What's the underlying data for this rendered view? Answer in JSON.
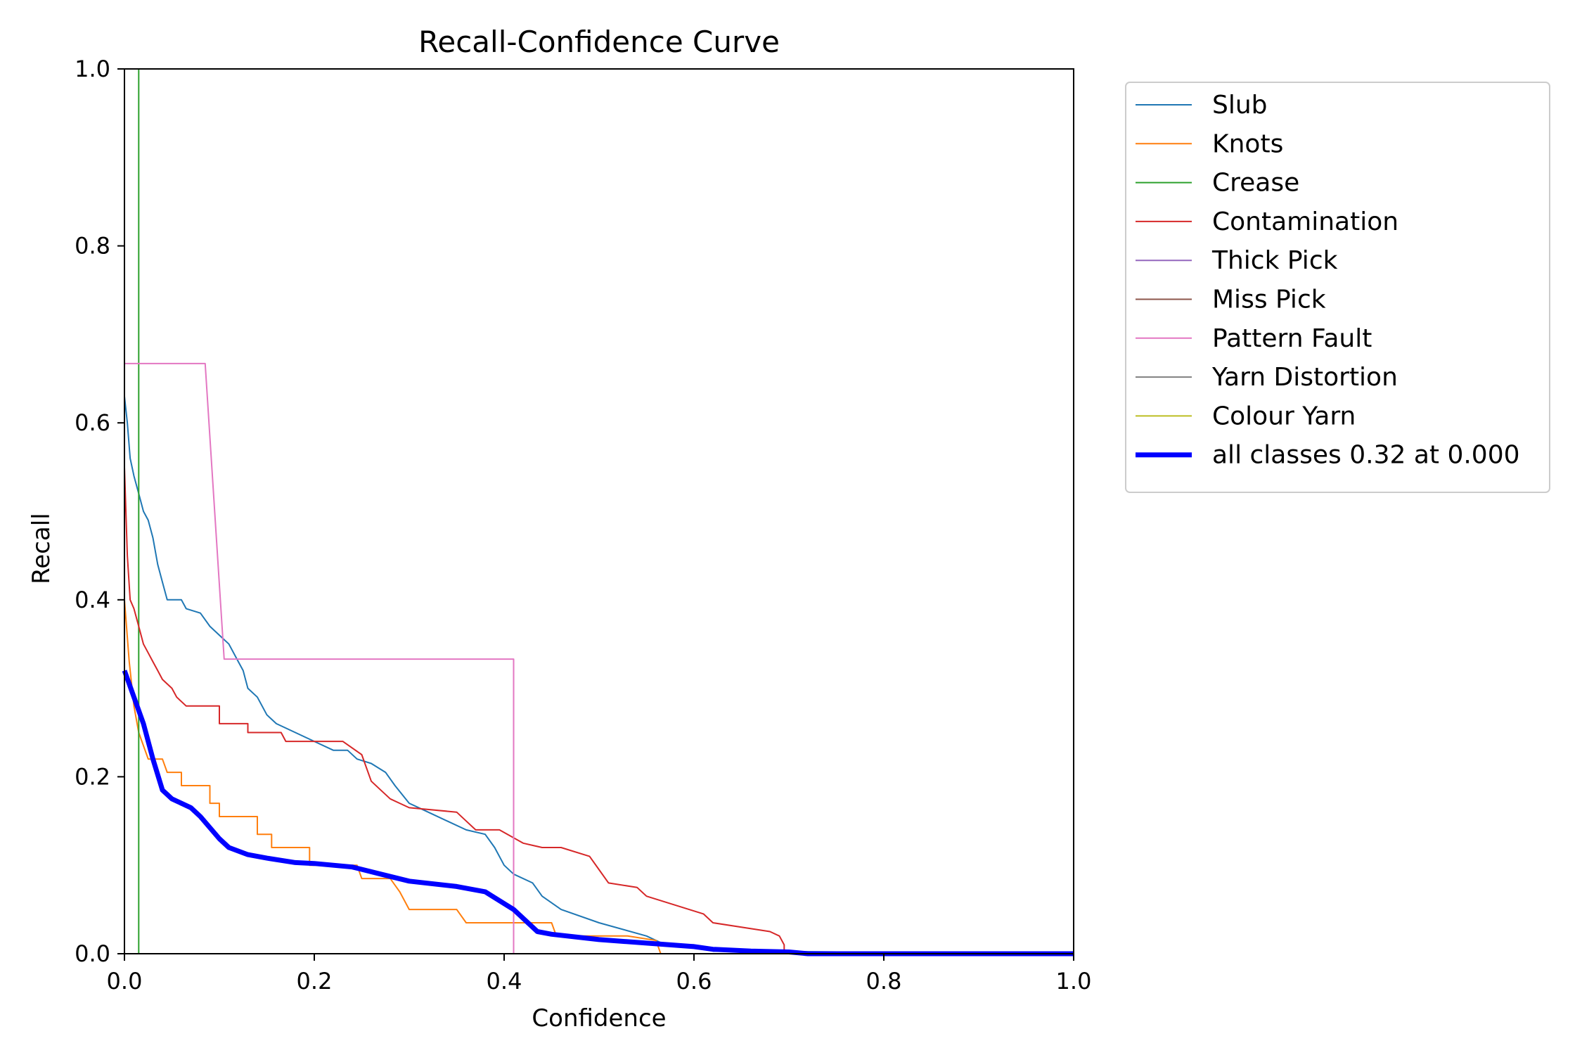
{
  "chart_data": {
    "type": "line",
    "title": "Recall-Confidence Curve",
    "xlabel": "Confidence",
    "ylabel": "Recall",
    "xlim": [
      0,
      1
    ],
    "ylim": [
      0,
      1
    ],
    "xticks": [
      "0.0",
      "0.2",
      "0.4",
      "0.6",
      "0.8",
      "1.0"
    ],
    "yticks": [
      "0.0",
      "0.2",
      "0.4",
      "0.6",
      "0.8",
      "1.0"
    ],
    "grid": false,
    "legend_position": "outside-right-top",
    "series": [
      {
        "name": "Slub",
        "color": "#1f77b4",
        "width": 2,
        "points": [
          [
            0,
            0.63
          ],
          [
            0.003,
            0.6
          ],
          [
            0.006,
            0.56
          ],
          [
            0.01,
            0.54
          ],
          [
            0.015,
            0.52
          ],
          [
            0.02,
            0.5
          ],
          [
            0.025,
            0.49
          ],
          [
            0.03,
            0.47
          ],
          [
            0.035,
            0.44
          ],
          [
            0.04,
            0.42
          ],
          [
            0.045,
            0.4
          ],
          [
            0.06,
            0.4
          ],
          [
            0.065,
            0.39
          ],
          [
            0.08,
            0.385
          ],
          [
            0.09,
            0.37
          ],
          [
            0.1,
            0.36
          ],
          [
            0.11,
            0.35
          ],
          [
            0.12,
            0.33
          ],
          [
            0.125,
            0.32
          ],
          [
            0.13,
            0.3
          ],
          [
            0.14,
            0.29
          ],
          [
            0.15,
            0.27
          ],
          [
            0.16,
            0.26
          ],
          [
            0.18,
            0.25
          ],
          [
            0.2,
            0.24
          ],
          [
            0.22,
            0.23
          ],
          [
            0.235,
            0.23
          ],
          [
            0.245,
            0.22
          ],
          [
            0.26,
            0.215
          ],
          [
            0.275,
            0.205
          ],
          [
            0.285,
            0.19
          ],
          [
            0.3,
            0.17
          ],
          [
            0.32,
            0.16
          ],
          [
            0.34,
            0.15
          ],
          [
            0.36,
            0.14
          ],
          [
            0.38,
            0.135
          ],
          [
            0.39,
            0.12
          ],
          [
            0.4,
            0.1
          ],
          [
            0.41,
            0.09
          ],
          [
            0.43,
            0.08
          ],
          [
            0.44,
            0.065
          ],
          [
            0.46,
            0.05
          ],
          [
            0.5,
            0.035
          ],
          [
            0.55,
            0.02
          ],
          [
            0.57,
            0.01
          ],
          [
            0.6,
            0.01
          ],
          [
            0.62,
            0.003
          ],
          [
            1,
            0
          ]
        ]
      },
      {
        "name": "Knots",
        "color": "#ff7f0e",
        "width": 2,
        "points": [
          [
            0,
            0.4
          ],
          [
            0.005,
            0.33
          ],
          [
            0.01,
            0.28
          ],
          [
            0.015,
            0.25
          ],
          [
            0.025,
            0.22
          ],
          [
            0.04,
            0.22
          ],
          [
            0.045,
            0.205
          ],
          [
            0.06,
            0.205
          ],
          [
            0.06,
            0.19
          ],
          [
            0.09,
            0.19
          ],
          [
            0.09,
            0.17
          ],
          [
            0.1,
            0.17
          ],
          [
            0.1,
            0.155
          ],
          [
            0.14,
            0.155
          ],
          [
            0.14,
            0.135
          ],
          [
            0.155,
            0.135
          ],
          [
            0.155,
            0.12
          ],
          [
            0.195,
            0.12
          ],
          [
            0.195,
            0.1
          ],
          [
            0.245,
            0.1
          ],
          [
            0.25,
            0.085
          ],
          [
            0.28,
            0.085
          ],
          [
            0.29,
            0.07
          ],
          [
            0.3,
            0.05
          ],
          [
            0.35,
            0.05
          ],
          [
            0.36,
            0.035
          ],
          [
            0.45,
            0.035
          ],
          [
            0.455,
            0.02
          ],
          [
            0.53,
            0.02
          ],
          [
            0.56,
            0.015
          ],
          [
            0.565,
            0
          ],
          [
            1,
            0
          ]
        ]
      },
      {
        "name": "Crease",
        "color": "#2ca02c",
        "width": 2,
        "points": [
          [
            0.015,
            1.0
          ],
          [
            0.015,
            0.0
          ],
          [
            1,
            0
          ]
        ]
      },
      {
        "name": "Contamination",
        "color": "#d62728",
        "width": 2,
        "points": [
          [
            0,
            0.55
          ],
          [
            0.003,
            0.45
          ],
          [
            0.006,
            0.4
          ],
          [
            0.01,
            0.39
          ],
          [
            0.015,
            0.37
          ],
          [
            0.02,
            0.35
          ],
          [
            0.025,
            0.34
          ],
          [
            0.03,
            0.33
          ],
          [
            0.035,
            0.32
          ],
          [
            0.04,
            0.31
          ],
          [
            0.05,
            0.3
          ],
          [
            0.055,
            0.29
          ],
          [
            0.065,
            0.28
          ],
          [
            0.1,
            0.28
          ],
          [
            0.1,
            0.26
          ],
          [
            0.13,
            0.26
          ],
          [
            0.13,
            0.25
          ],
          [
            0.165,
            0.25
          ],
          [
            0.17,
            0.24
          ],
          [
            0.23,
            0.24
          ],
          [
            0.25,
            0.225
          ],
          [
            0.26,
            0.195
          ],
          [
            0.27,
            0.185
          ],
          [
            0.28,
            0.175
          ],
          [
            0.29,
            0.17
          ],
          [
            0.3,
            0.165
          ],
          [
            0.35,
            0.16
          ],
          [
            0.36,
            0.15
          ],
          [
            0.37,
            0.14
          ],
          [
            0.395,
            0.14
          ],
          [
            0.42,
            0.125
          ],
          [
            0.44,
            0.12
          ],
          [
            0.46,
            0.12
          ],
          [
            0.49,
            0.11
          ],
          [
            0.5,
            0.095
          ],
          [
            0.51,
            0.08
          ],
          [
            0.54,
            0.075
          ],
          [
            0.55,
            0.065
          ],
          [
            0.58,
            0.055
          ],
          [
            0.61,
            0.045
          ],
          [
            0.62,
            0.035
          ],
          [
            0.68,
            0.025
          ],
          [
            0.69,
            0.02
          ],
          [
            0.695,
            0.01
          ],
          [
            0.695,
            0
          ],
          [
            1,
            0
          ]
        ]
      },
      {
        "name": "Thick Pick",
        "color": "#9467bd",
        "width": 2,
        "points": [
          [
            0,
            0
          ],
          [
            1,
            0
          ]
        ]
      },
      {
        "name": "Miss Pick",
        "color": "#8c564b",
        "width": 2,
        "points": [
          [
            0,
            0
          ],
          [
            1,
            0
          ]
        ]
      },
      {
        "name": "Pattern Fault",
        "color": "#e377c2",
        "width": 2,
        "points": [
          [
            0,
            0.667
          ],
          [
            0.085,
            0.667
          ],
          [
            0.105,
            0.333
          ],
          [
            0.41,
            0.333
          ],
          [
            0.41,
            0
          ],
          [
            1,
            0
          ]
        ]
      },
      {
        "name": "Yarn Distortion",
        "color": "#7f7f7f",
        "width": 2,
        "points": [
          [
            0,
            0
          ],
          [
            1,
            0
          ]
        ]
      },
      {
        "name": "Colour Yarn",
        "color": "#bcbd22",
        "width": 2,
        "points": [
          [
            0,
            0
          ],
          [
            1,
            0
          ]
        ]
      },
      {
        "name": "all classes 0.32 at 0.000",
        "color": "#0000ff",
        "width": 7,
        "points": [
          [
            0,
            0.32
          ],
          [
            0.01,
            0.29
          ],
          [
            0.02,
            0.26
          ],
          [
            0.03,
            0.22
          ],
          [
            0.04,
            0.185
          ],
          [
            0.05,
            0.175
          ],
          [
            0.07,
            0.165
          ],
          [
            0.08,
            0.155
          ],
          [
            0.1,
            0.13
          ],
          [
            0.11,
            0.12
          ],
          [
            0.13,
            0.112
          ],
          [
            0.15,
            0.108
          ],
          [
            0.18,
            0.103
          ],
          [
            0.2,
            0.102
          ],
          [
            0.24,
            0.098
          ],
          [
            0.27,
            0.09
          ],
          [
            0.3,
            0.082
          ],
          [
            0.35,
            0.076
          ],
          [
            0.38,
            0.07
          ],
          [
            0.41,
            0.05
          ],
          [
            0.435,
            0.025
          ],
          [
            0.45,
            0.022
          ],
          [
            0.5,
            0.016
          ],
          [
            0.55,
            0.012
          ],
          [
            0.6,
            0.008
          ],
          [
            0.62,
            0.005
          ],
          [
            0.66,
            0.003
          ],
          [
            0.7,
            0.002
          ],
          [
            0.72,
            0.0
          ],
          [
            1,
            0
          ]
        ]
      }
    ]
  }
}
